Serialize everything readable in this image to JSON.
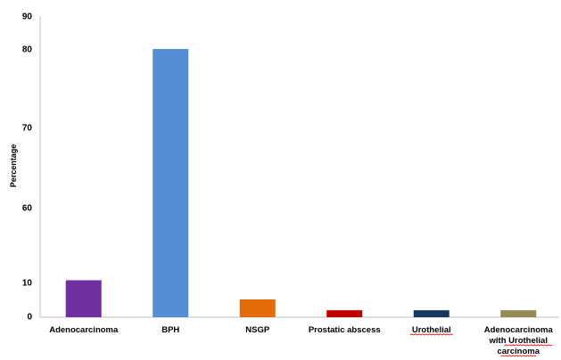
{
  "chart_data": {
    "type": "bar",
    "title": "",
    "xlabel": "",
    "ylabel": "Percentage",
    "grid": false,
    "legend": "none",
    "y_tick_labels": [
      "0",
      "10",
      "60",
      "70",
      "80",
      "90"
    ],
    "categories": [
      [
        "Adenocarcinoma"
      ],
      [
        "BPH"
      ],
      [
        "NSGP"
      ],
      [
        "Prostatic  abscess"
      ],
      [
        "Urothelial"
      ],
      [
        "Adenocarcinoma",
        "with Urothelial",
        "carcinoma"
      ]
    ],
    "values": [
      11.5,
      80,
      5,
      1.8,
      1.8,
      1.8
    ],
    "colors": [
      "#7030a0",
      "#558ed5",
      "#e46c0a",
      "#c00000",
      "#17375e",
      "#948a54"
    ]
  }
}
